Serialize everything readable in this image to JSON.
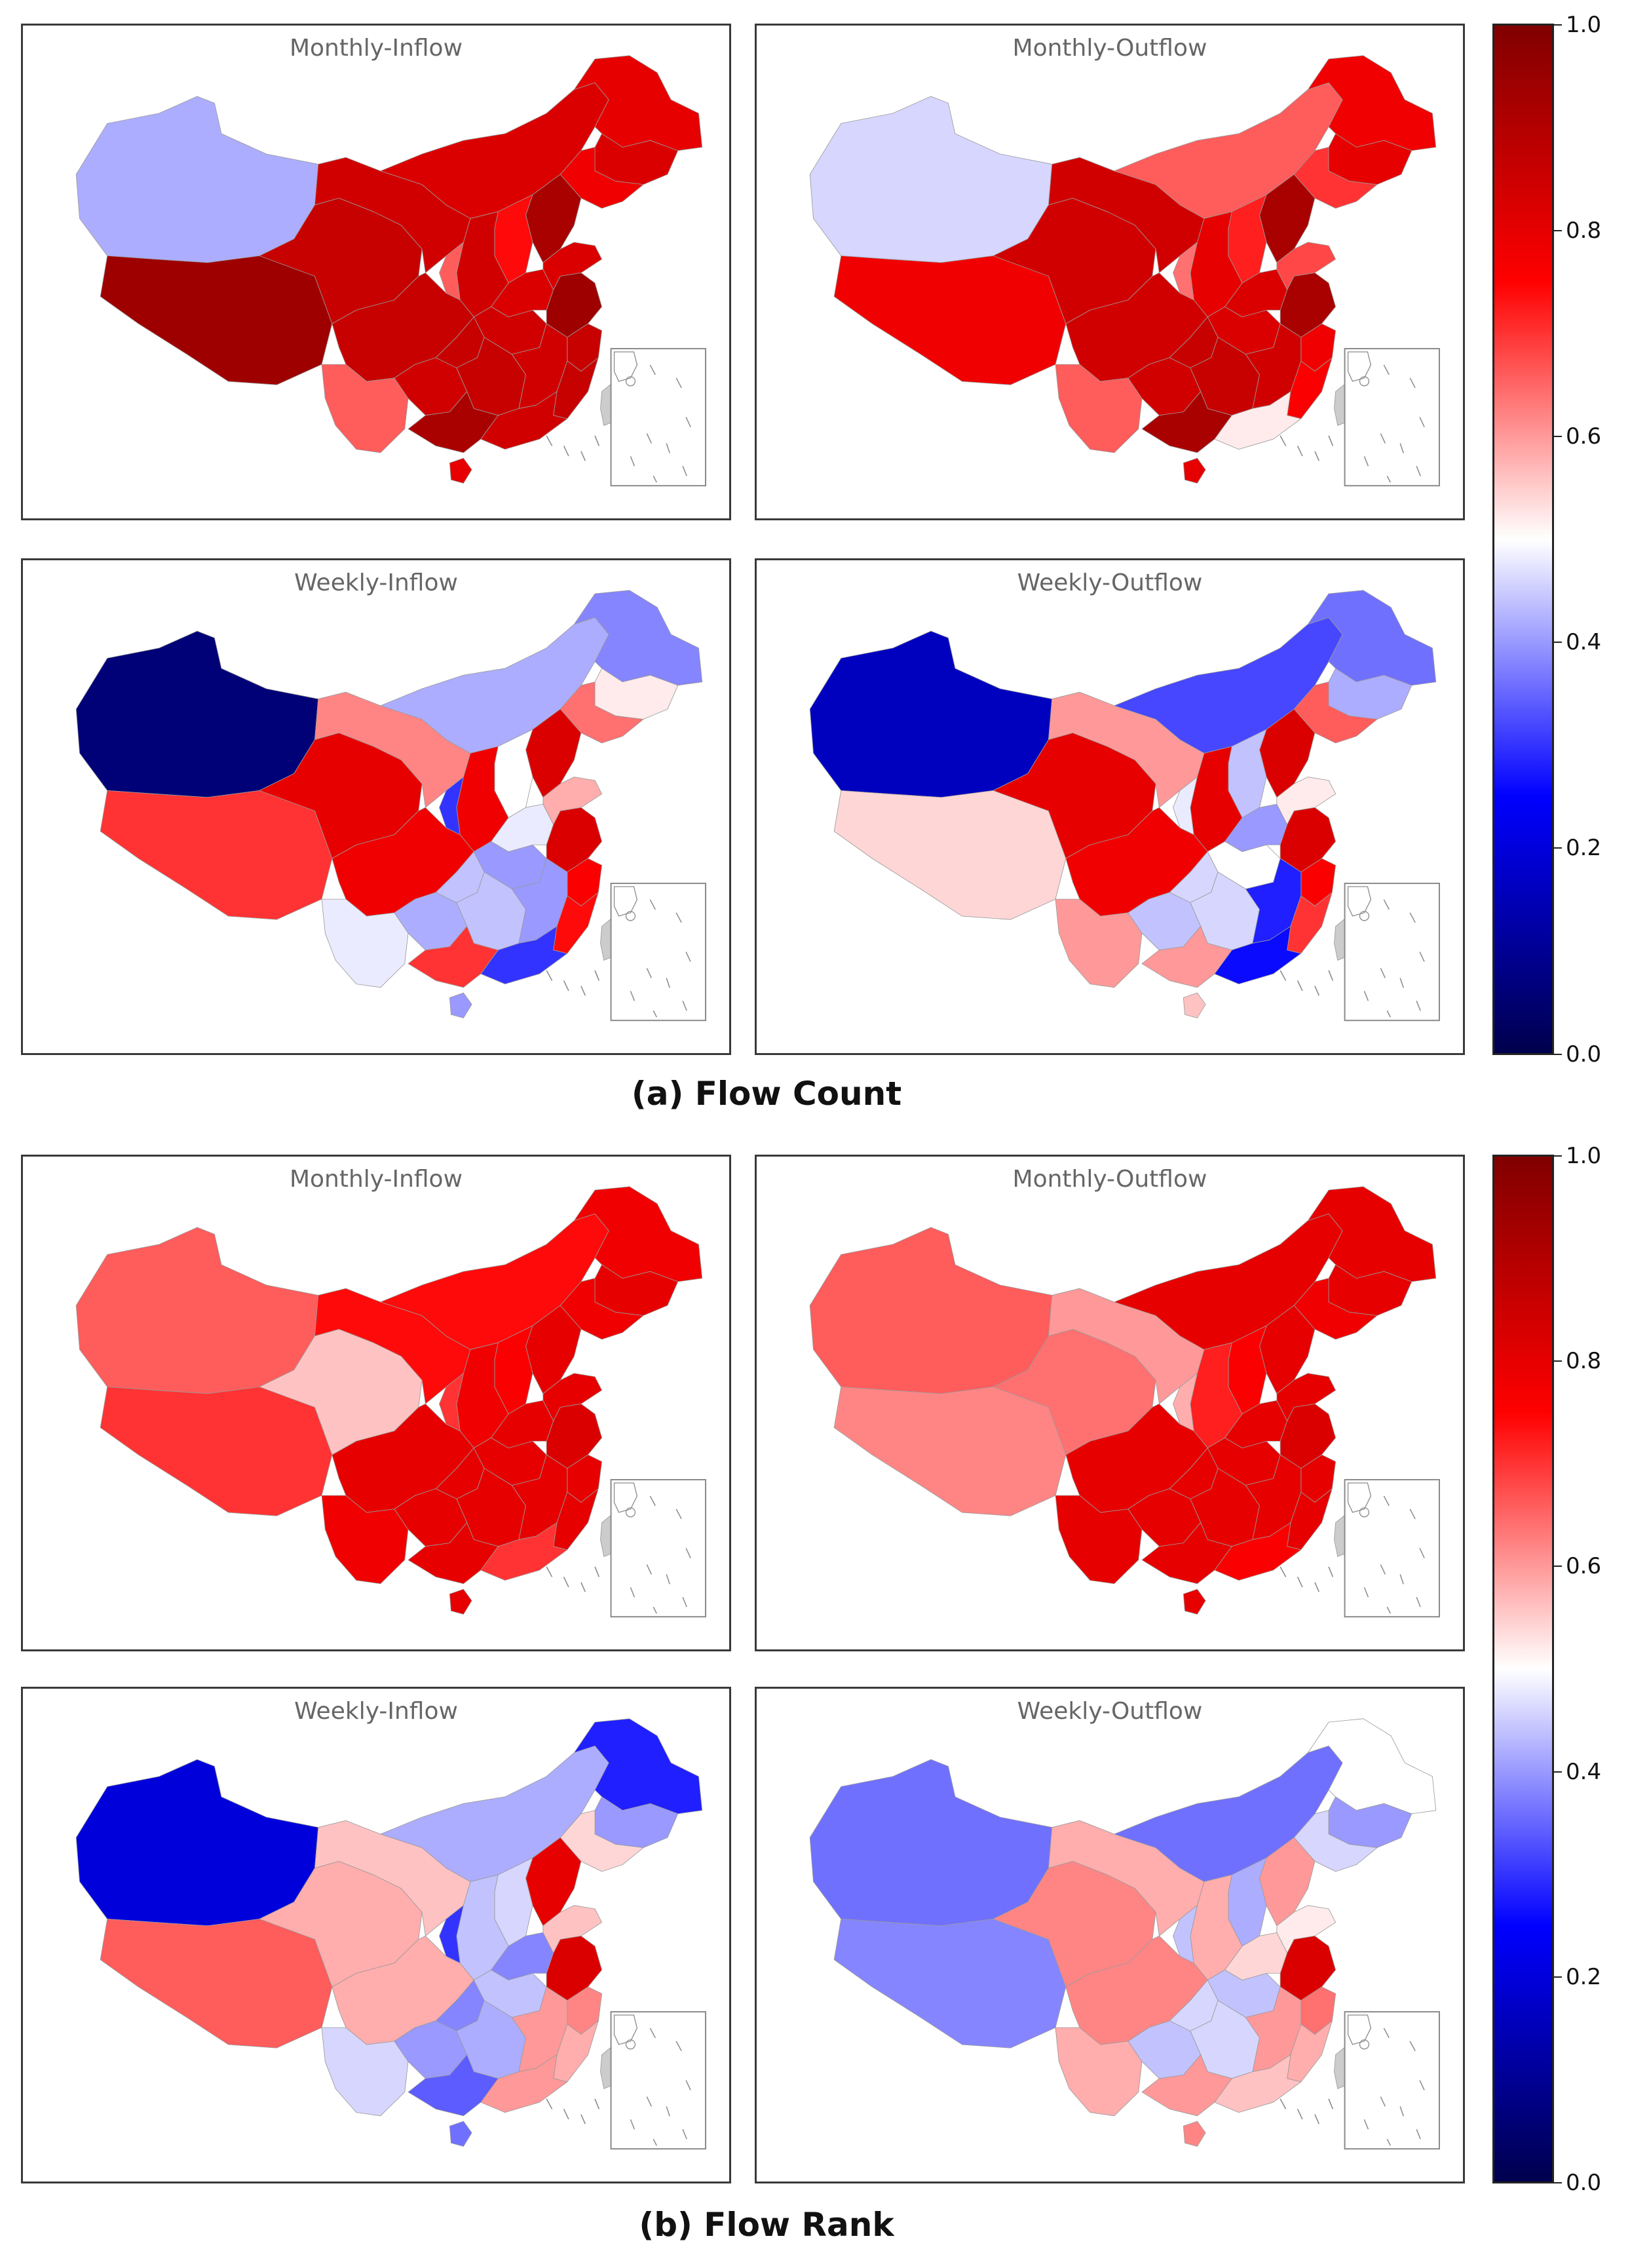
{
  "figure": {
    "sections": [
      {
        "caption": "(a) Flow Count",
        "panels": [
          {
            "title": "Monthly-Inflow",
            "regions": {
              "xinjiang": 0.42,
              "tibet": 0.94,
              "qinghai": 0.86,
              "gansu": 0.84,
              "inner_mongolia": 0.82,
              "heilongjiang": 0.8,
              "jilin": 0.82,
              "liaoning": 0.78,
              "beijing_hebei": 0.92,
              "shanxi": 0.74,
              "shaanxi": 0.84,
              "ningxia": 0.66,
              "sichuan": 0.86,
              "yunnan": 0.66,
              "guizhou": 0.84,
              "chongqing": 0.86,
              "hubei": 0.84,
              "hunan": 0.86,
              "henan": 0.82,
              "shandong": 0.82,
              "jiangsu_anhui": 0.94,
              "zhejiang": 0.86,
              "jiangxi": 0.84,
              "fujian": 0.86,
              "guangdong": 0.84,
              "guangxi": 0.92,
              "hainan": 0.8,
              "taiwan": null
            }
          },
          {
            "title": "Monthly-Outflow",
            "regions": {
              "xinjiang": 0.46,
              "tibet": 0.78,
              "qinghai": 0.84,
              "gansu": 0.84,
              "inner_mongolia": 0.66,
              "heilongjiang": 0.78,
              "jilin": 0.8,
              "liaoning": 0.7,
              "beijing_hebei": 0.92,
              "shanxi": 0.72,
              "shaanxi": 0.8,
              "ningxia": 0.64,
              "sichuan": 0.84,
              "yunnan": 0.66,
              "guizhou": 0.84,
              "chongqing": 0.86,
              "hubei": 0.82,
              "hunan": 0.86,
              "henan": 0.82,
              "shandong": 0.68,
              "jiangsu_anhui": 0.92,
              "zhejiang": 0.78,
              "jiangxi": 0.84,
              "fujian": 0.76,
              "guangdong": 0.52,
              "guangxi": 0.92,
              "hainan": 0.8,
              "taiwan": null
            }
          },
          {
            "title": "Weekly-Inflow",
            "regions": {
              "xinjiang": 0.06,
              "tibet": 0.7,
              "qinghai": 0.8,
              "gansu": 0.62,
              "inner_mongolia": 0.42,
              "heilongjiang": 0.38,
              "jilin": 0.52,
              "liaoning": 0.64,
              "beijing_hebei": 0.82,
              "shanxi": 0.5,
              "shaanxi": 0.78,
              "ningxia": 0.3,
              "sichuan": 0.78,
              "yunnan": 0.48,
              "guizhou": 0.42,
              "chongqing": 0.44,
              "hubei": 0.4,
              "hunan": 0.44,
              "henan": 0.48,
              "shandong": 0.58,
              "jiangsu_anhui": 0.82,
              "zhejiang": 0.76,
              "jiangxi": 0.4,
              "fujian": 0.74,
              "guangdong": 0.3,
              "guangxi": 0.7,
              "hainan": 0.4,
              "taiwan": null
            }
          },
          {
            "title": "Weekly-Outflow",
            "regions": {
              "xinjiang": 0.16,
              "tibet": 0.54,
              "qinghai": 0.8,
              "gansu": 0.6,
              "inner_mongolia": 0.32,
              "heilongjiang": 0.36,
              "jilin": 0.42,
              "liaoning": 0.66,
              "beijing_hebei": 0.82,
              "shanxi": 0.44,
              "shaanxi": 0.8,
              "ningxia": 0.48,
              "sichuan": 0.78,
              "yunnan": 0.6,
              "guizhou": 0.44,
              "chongqing": 0.46,
              "hubei": 0.5,
              "hunan": 0.46,
              "henan": 0.4,
              "shandong": 0.52,
              "jiangsu_anhui": 0.82,
              "zhejiang": 0.76,
              "jiangxi": 0.28,
              "fujian": 0.7,
              "guangdong": 0.26,
              "guangxi": 0.6,
              "hainan": 0.56,
              "taiwan": null
            }
          }
        ]
      },
      {
        "caption": "(b) Flow Rank",
        "panels": [
          {
            "title": "Monthly-Inflow",
            "regions": {
              "xinjiang": 0.66,
              "tibet": 0.7,
              "qinghai": 0.56,
              "gansu": 0.74,
              "inner_mongolia": 0.74,
              "heilongjiang": 0.78,
              "jilin": 0.8,
              "liaoning": 0.78,
              "beijing_hebei": 0.8,
              "shanxi": 0.76,
              "shaanxi": 0.78,
              "ningxia": 0.7,
              "sichuan": 0.8,
              "yunnan": 0.78,
              "guizhou": 0.8,
              "chongqing": 0.8,
              "hubei": 0.8,
              "hunan": 0.8,
              "henan": 0.8,
              "shandong": 0.8,
              "jiangsu_anhui": 0.82,
              "zhejiang": 0.8,
              "jiangxi": 0.8,
              "fujian": 0.8,
              "guangdong": 0.7,
              "guangxi": 0.8,
              "hainan": 0.8,
              "taiwan": null
            }
          },
          {
            "title": "Monthly-Outflow",
            "regions": {
              "xinjiang": 0.66,
              "tibet": 0.62,
              "qinghai": 0.64,
              "gansu": 0.6,
              "inner_mongolia": 0.8,
              "heilongjiang": 0.8,
              "jilin": 0.8,
              "liaoning": 0.78,
              "beijing_hebei": 0.8,
              "shanxi": 0.76,
              "shaanxi": 0.72,
              "ningxia": 0.58,
              "sichuan": 0.8,
              "yunnan": 0.8,
              "guizhou": 0.8,
              "chongqing": 0.8,
              "hubei": 0.8,
              "hunan": 0.8,
              "henan": 0.8,
              "shandong": 0.8,
              "jiangsu_anhui": 0.82,
              "zhejiang": 0.8,
              "jiangxi": 0.8,
              "fujian": 0.8,
              "guangdong": 0.76,
              "guangxi": 0.8,
              "hainan": 0.8,
              "taiwan": null
            }
          },
          {
            "title": "Weekly-Inflow",
            "regions": {
              "xinjiang": 0.2,
              "tibet": 0.66,
              "qinghai": 0.58,
              "gansu": 0.56,
              "inner_mongolia": 0.42,
              "heilongjiang": 0.28,
              "jilin": 0.4,
              "liaoning": 0.54,
              "beijing_hebei": 0.8,
              "shanxi": 0.46,
              "shaanxi": 0.44,
              "ningxia": 0.3,
              "sichuan": 0.58,
              "yunnan": 0.46,
              "guizhou": 0.4,
              "chongqing": 0.38,
              "hubei": 0.44,
              "hunan": 0.42,
              "henan": 0.38,
              "shandong": 0.56,
              "jiangsu_anhui": 0.82,
              "zhejiang": 0.62,
              "jiangxi": 0.6,
              "fujian": 0.58,
              "guangdong": 0.6,
              "guangxi": 0.34,
              "hainan": 0.36,
              "taiwan": null
            }
          },
          {
            "title": "Weekly-Outflow",
            "regions": {
              "xinjiang": 0.36,
              "tibet": 0.38,
              "qinghai": 0.62,
              "gansu": 0.58,
              "inner_mongolia": 0.36,
              "heilongjiang": 0.5,
              "jilin": 0.4,
              "liaoning": 0.46,
              "beijing_hebei": 0.6,
              "shanxi": 0.42,
              "shaanxi": 0.58,
              "ningxia": 0.44,
              "sichuan": 0.62,
              "yunnan": 0.58,
              "guizhou": 0.44,
              "chongqing": 0.46,
              "hubei": 0.44,
              "hunan": 0.46,
              "henan": 0.54,
              "shandong": 0.52,
              "jiangsu_anhui": 0.82,
              "zhejiang": 0.64,
              "jiangxi": 0.6,
              "fujian": 0.58,
              "guangdong": 0.56,
              "guangxi": 0.6,
              "hainan": 0.62,
              "taiwan": null
            }
          }
        ]
      }
    ],
    "colorbar": {
      "colormap": "seismic",
      "range": [
        0.0,
        1.0
      ],
      "ticks": [
        "0.0",
        "0.2",
        "0.4",
        "0.6",
        "0.8",
        "1.0"
      ]
    },
    "colors": {
      "missing": "#cccccc",
      "border": "#7a7a7a",
      "frame": "#3a3a3a"
    }
  }
}
